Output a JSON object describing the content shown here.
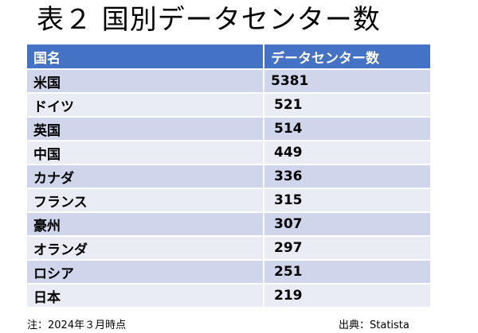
{
  "title": "表２ 国別データセンター数",
  "table": {
    "headers": [
      "国名",
      "データセンター数"
    ],
    "rows": [
      {
        "country": "米国",
        "count": "5381"
      },
      {
        "country": "ドイツ",
        "count": "521"
      },
      {
        "country": "英国",
        "count": "514"
      },
      {
        "country": "中国",
        "count": "449"
      },
      {
        "country": "カナダ",
        "count": "336"
      },
      {
        "country": "フランス",
        "count": "315"
      },
      {
        "country": "豪州",
        "count": "307"
      },
      {
        "country": "オランダ",
        "count": "297"
      },
      {
        "country": "ロシア",
        "count": "251"
      },
      {
        "country": "日本",
        "count": "219"
      }
    ]
  },
  "footer": {
    "note": "注：2024年３月時点",
    "source": "出典：Statista"
  },
  "colors": {
    "header_bg": "#4472c4",
    "row_odd": "#cfd5ea",
    "row_even": "#e9ebf5"
  }
}
